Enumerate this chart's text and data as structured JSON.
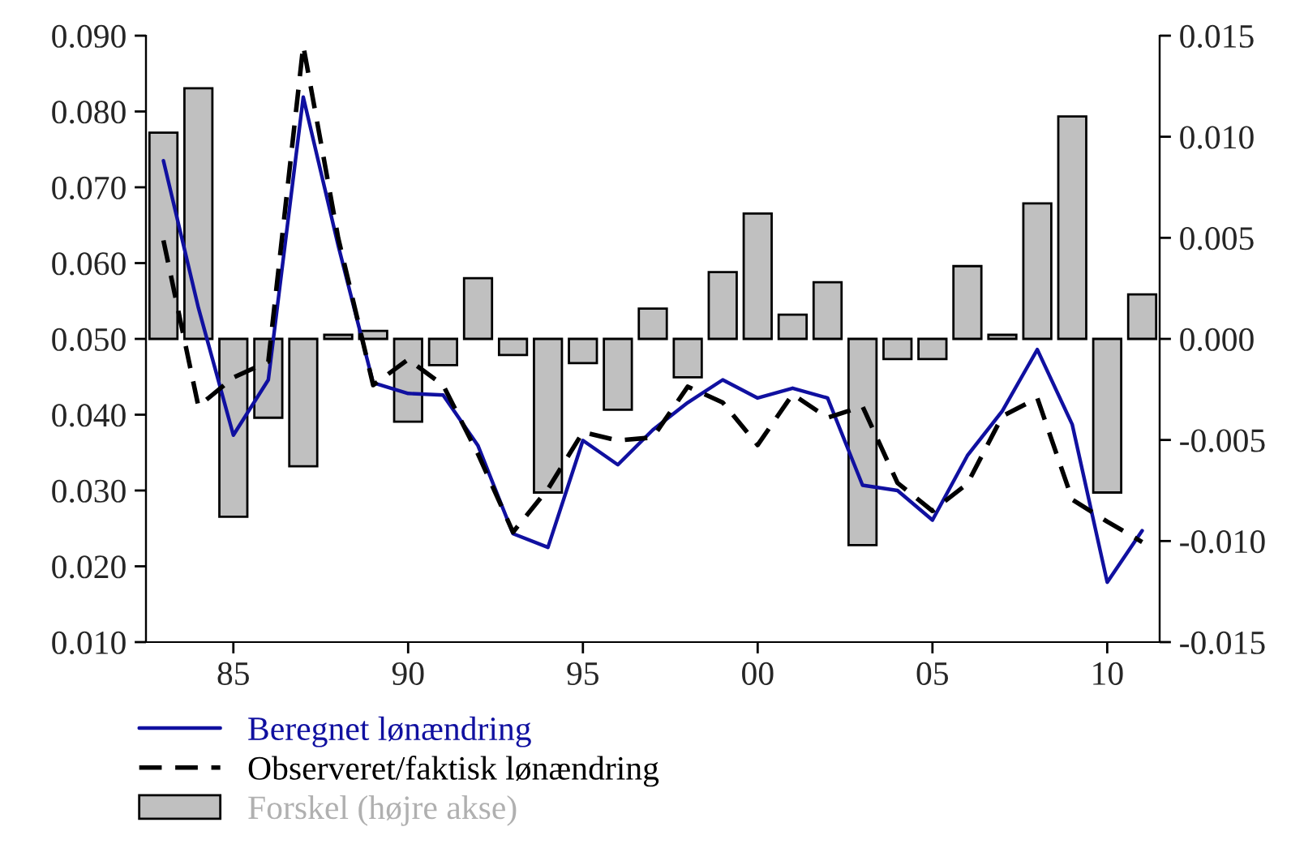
{
  "chart_data": {
    "type": "line",
    "x": [
      1983,
      1984,
      1985,
      1986,
      1987,
      1988,
      1989,
      1990,
      1991,
      1992,
      1993,
      1994,
      1995,
      1996,
      1997,
      1998,
      1999,
      2000,
      2001,
      2002,
      2003,
      2004,
      2005,
      2006,
      2007,
      2008,
      2009,
      2010,
      2011
    ],
    "series": [
      {
        "name": "Beregnet lønændring",
        "color": "#1010a0",
        "line_style": "solid",
        "values": [
          0.0735,
          0.0541,
          0.0373,
          0.0446,
          0.0819,
          0.0623,
          0.0442,
          0.0428,
          0.0426,
          0.0359,
          0.0243,
          0.0225,
          0.0366,
          0.0334,
          0.038,
          0.0416,
          0.0446,
          0.0422,
          0.0435,
          0.0422,
          0.0307,
          0.03,
          0.0261,
          0.0346,
          0.0405,
          0.0486,
          0.0387,
          0.0179,
          0.0247
        ]
      },
      {
        "name": "Observeret/faktisk lønændring",
        "color": "#000000",
        "line_style": "dashed",
        "values": [
          0.063,
          0.0411,
          0.0449,
          0.047,
          0.0887,
          0.0633,
          0.0439,
          0.0473,
          0.0439,
          0.0348,
          0.0245,
          0.0302,
          0.0377,
          0.0366,
          0.037,
          0.0437,
          0.0416,
          0.036,
          0.0427,
          0.0396,
          0.0411,
          0.031,
          0.0273,
          0.0309,
          0.0398,
          0.0422,
          0.0288,
          0.0259,
          0.0232
        ]
      },
      {
        "name": "Forskel (højre akse)",
        "type": "bar",
        "axis": "y2",
        "color": "#c0c0c0",
        "values": [
          0.0102,
          0.0124,
          -0.0088,
          -0.0039,
          -0.0063,
          0.0002,
          0.0004,
          -0.0041,
          -0.0013,
          0.003,
          -0.0008,
          -0.0076,
          -0.0012,
          -0.0035,
          0.0015,
          -0.0019,
          0.0033,
          0.0062,
          0.0012,
          0.0028,
          -0.0102,
          -0.001,
          -0.001,
          0.0036,
          0.0002,
          0.0067,
          0.011,
          -0.0076,
          0.0022
        ]
      }
    ],
    "xlim": [
      1982.5,
      2011.5
    ],
    "xticks": [
      {
        "value": 1985,
        "label": "85"
      },
      {
        "value": 1990,
        "label": "90"
      },
      {
        "value": 1995,
        "label": "95"
      },
      {
        "value": 2000,
        "label": "00"
      },
      {
        "value": 2005,
        "label": "05"
      },
      {
        "value": 2010,
        "label": "10"
      }
    ],
    "ylim": [
      0.01,
      0.09
    ],
    "yticks": [
      {
        "value": 0.01,
        "label": "0.010"
      },
      {
        "value": 0.02,
        "label": "0.020"
      },
      {
        "value": 0.03,
        "label": "0.030"
      },
      {
        "value": 0.04,
        "label": "0.040"
      },
      {
        "value": 0.05,
        "label": "0.050"
      },
      {
        "value": 0.06,
        "label": "0.060"
      },
      {
        "value": 0.07,
        "label": "0.070"
      },
      {
        "value": 0.08,
        "label": "0.080"
      },
      {
        "value": 0.09,
        "label": "0.090"
      }
    ],
    "y2lim": [
      -0.015,
      0.015
    ],
    "y2ticks": [
      {
        "value": -0.015,
        "label": "-0.015"
      },
      {
        "value": -0.01,
        "label": "-0.010"
      },
      {
        "value": -0.005,
        "label": "-0.005"
      },
      {
        "value": 0,
        "label": "0.000"
      },
      {
        "value": 0.005,
        "label": "0.005"
      },
      {
        "value": 0.01,
        "label": "0.010"
      },
      {
        "value": 0.015,
        "label": "0.015"
      }
    ],
    "grid": false,
    "legend": "bottom"
  }
}
